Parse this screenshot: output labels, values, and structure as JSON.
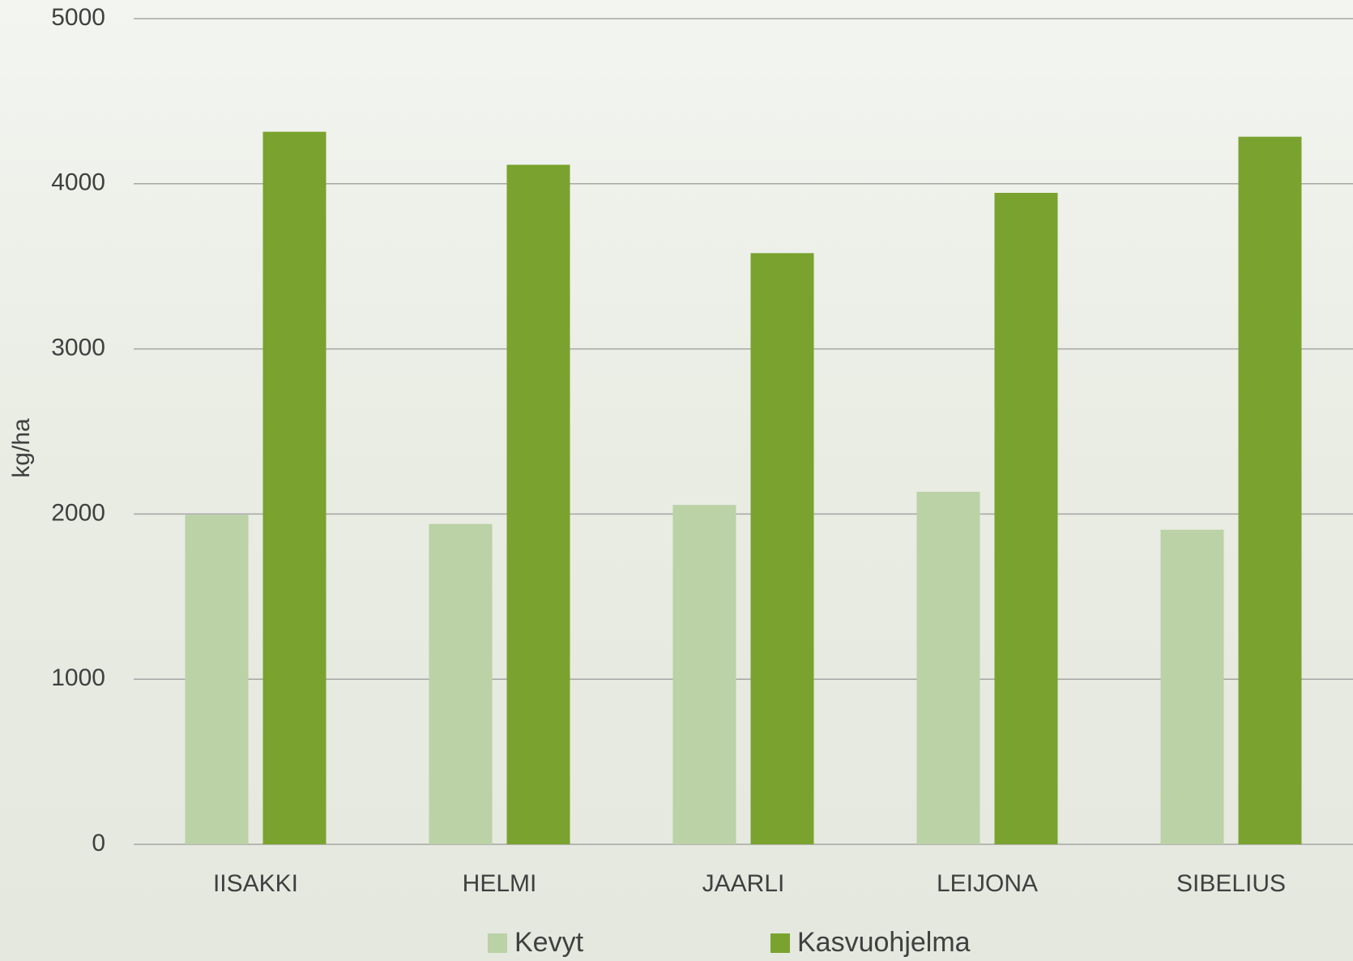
{
  "chart_data": {
    "type": "bar",
    "y_label": "kg/ha",
    "categories": [
      "IISAKKI",
      "HELMI",
      "JAARLI",
      "LEIJONA",
      "SIBELIUS"
    ],
    "series": [
      {
        "name": "Kevyt",
        "color": "#bad2a6",
        "values": [
          1995,
          1940,
          2055,
          2135,
          1905
        ]
      },
      {
        "name": "Kasvuohjelma",
        "color": "#7aa22f",
        "values": [
          4315,
          4115,
          3580,
          3945,
          4285
        ]
      }
    ],
    "ylim": [
      0,
      5000
    ],
    "yticks": [
      0,
      1000,
      2000,
      3000,
      4000,
      5000
    ],
    "grid": true,
    "legend": "bottom"
  }
}
